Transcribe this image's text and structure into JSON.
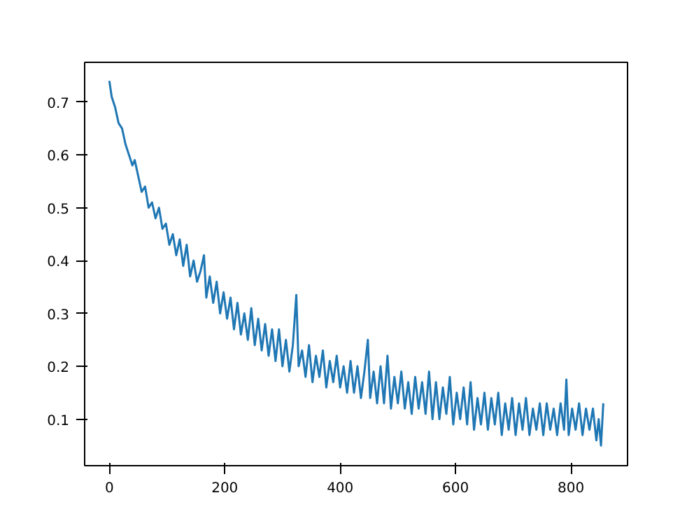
{
  "chart_data": {
    "type": "line",
    "xlim": [
      -42.8,
      898
    ],
    "ylim": [
      0.012,
      0.775
    ],
    "xticks": [
      0,
      200,
      400,
      600,
      800
    ],
    "yticks": [
      0.1,
      0.2,
      0.3,
      0.4,
      0.5,
      0.6,
      0.7
    ],
    "grid": false,
    "series": [
      {
        "color": "#1f77b4",
        "x": [
          0,
          4,
          10,
          16,
          22,
          28,
          34,
          40,
          44,
          50,
          56,
          62,
          68,
          74,
          80,
          86,
          92,
          98,
          104,
          110,
          116,
          122,
          128,
          134,
          140,
          146,
          152,
          158,
          164,
          168,
          174,
          180,
          186,
          192,
          198,
          204,
          210,
          216,
          222,
          228,
          234,
          240,
          246,
          252,
          258,
          264,
          270,
          276,
          282,
          288,
          294,
          300,
          306,
          312,
          318,
          324,
          328,
          334,
          340,
          346,
          352,
          358,
          364,
          370,
          376,
          382,
          388,
          394,
          400,
          406,
          412,
          418,
          424,
          430,
          436,
          442,
          448,
          452,
          458,
          464,
          470,
          476,
          482,
          488,
          494,
          500,
          506,
          512,
          518,
          524,
          530,
          536,
          542,
          548,
          554,
          560,
          566,
          572,
          578,
          584,
          590,
          596,
          602,
          608,
          614,
          620,
          626,
          632,
          638,
          644,
          650,
          656,
          662,
          668,
          674,
          680,
          686,
          692,
          698,
          704,
          710,
          716,
          722,
          728,
          734,
          740,
          746,
          752,
          758,
          764,
          770,
          776,
          782,
          788,
          792,
          796,
          802,
          808,
          814,
          820,
          826,
          832,
          838,
          844,
          848,
          852,
          856
        ],
        "values": [
          0.74,
          0.71,
          0.69,
          0.66,
          0.65,
          0.62,
          0.6,
          0.58,
          0.59,
          0.56,
          0.53,
          0.54,
          0.5,
          0.51,
          0.48,
          0.5,
          0.46,
          0.47,
          0.43,
          0.45,
          0.41,
          0.44,
          0.39,
          0.43,
          0.37,
          0.4,
          0.36,
          0.38,
          0.41,
          0.33,
          0.37,
          0.32,
          0.36,
          0.3,
          0.34,
          0.29,
          0.33,
          0.27,
          0.32,
          0.26,
          0.3,
          0.25,
          0.31,
          0.24,
          0.29,
          0.23,
          0.28,
          0.22,
          0.27,
          0.21,
          0.27,
          0.2,
          0.25,
          0.19,
          0.24,
          0.335,
          0.2,
          0.23,
          0.18,
          0.24,
          0.17,
          0.22,
          0.18,
          0.23,
          0.16,
          0.21,
          0.17,
          0.22,
          0.16,
          0.2,
          0.15,
          0.21,
          0.15,
          0.2,
          0.14,
          0.19,
          0.25,
          0.14,
          0.19,
          0.13,
          0.2,
          0.13,
          0.22,
          0.12,
          0.18,
          0.13,
          0.19,
          0.12,
          0.17,
          0.11,
          0.18,
          0.12,
          0.17,
          0.11,
          0.19,
          0.1,
          0.17,
          0.1,
          0.16,
          0.11,
          0.18,
          0.09,
          0.15,
          0.1,
          0.16,
          0.09,
          0.17,
          0.08,
          0.14,
          0.09,
          0.15,
          0.08,
          0.14,
          0.09,
          0.15,
          0.07,
          0.13,
          0.08,
          0.14,
          0.07,
          0.13,
          0.08,
          0.14,
          0.07,
          0.12,
          0.08,
          0.13,
          0.07,
          0.13,
          0.08,
          0.12,
          0.07,
          0.13,
          0.08,
          0.175,
          0.07,
          0.12,
          0.08,
          0.13,
          0.07,
          0.12,
          0.08,
          0.12,
          0.06,
          0.1,
          0.05,
          0.13
        ]
      }
    ]
  }
}
